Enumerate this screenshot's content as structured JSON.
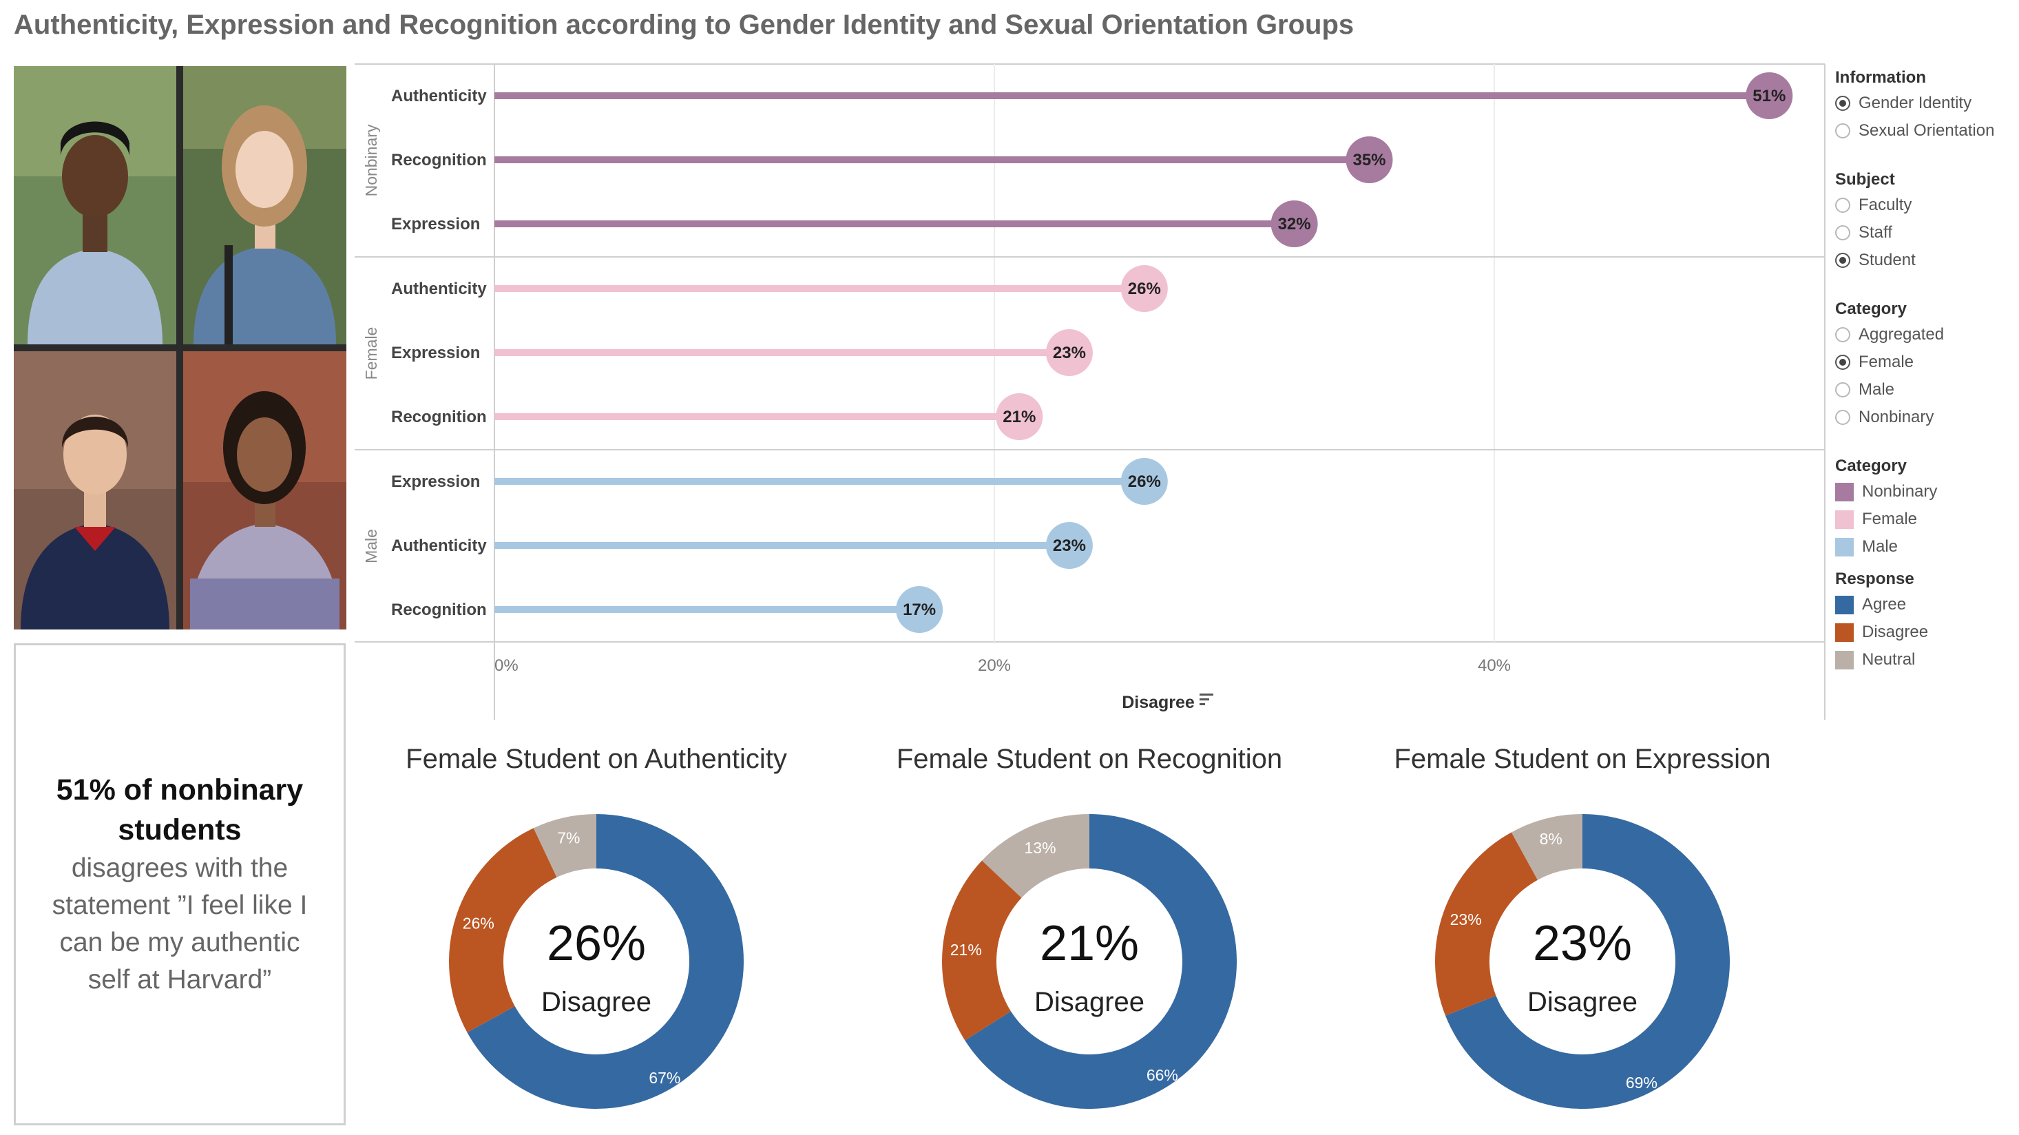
{
  "title": "Authenticity, Expression and Recognition according to Gender Identity and Sexual Orientation Groups",
  "callout": {
    "strong": "51% of nonbinary students",
    "rest": "disagrees with the statement ”I feel like I can be my authentic self at Harvard”"
  },
  "sidebar": {
    "information": {
      "header": "Information",
      "options": [
        {
          "label": "Gender Identity",
          "selected": true
        },
        {
          "label": "Sexual Orientation",
          "selected": false
        }
      ]
    },
    "subject": {
      "header": "Subject",
      "options": [
        {
          "label": "Faculty",
          "selected": false
        },
        {
          "label": "Staff",
          "selected": false
        },
        {
          "label": "Student",
          "selected": true
        }
      ]
    },
    "category_filter": {
      "header": "Category",
      "options": [
        {
          "label": "Aggregated",
          "selected": false
        },
        {
          "label": "Female",
          "selected": true
        },
        {
          "label": "Male",
          "selected": false
        },
        {
          "label": "Nonbinary",
          "selected": false
        }
      ]
    },
    "category_legend": {
      "header": "Category",
      "items": [
        {
          "label": "Nonbinary",
          "color": "#a77b9f"
        },
        {
          "label": "Female",
          "color": "#f0c1d0"
        },
        {
          "label": "Male",
          "color": "#a8c8e2"
        }
      ]
    },
    "response_legend": {
      "header": "Response",
      "items": [
        {
          "label": "Agree",
          "color": "#3569a1"
        },
        {
          "label": "Disagree",
          "color": "#bb5623"
        },
        {
          "label": "Neutral",
          "color": "#bab0a8"
        }
      ]
    }
  },
  "chart_data": [
    {
      "type": "bar",
      "xlabel": "Disagree",
      "xlim": [
        0,
        50
      ],
      "x_ticks": [
        "0%",
        "20%",
        "40%"
      ],
      "x_tick_values": [
        0,
        20,
        40
      ],
      "groups": [
        {
          "name": "Nonbinary",
          "color": "#a77b9f",
          "label_color": "#a77b9f",
          "items": [
            {
              "label": "Authenticity",
              "value": 51,
              "text": "51%"
            },
            {
              "label": "Recognition",
              "value": 35,
              "text": "35%"
            },
            {
              "label": "Expression",
              "value": 32,
              "text": "32%"
            }
          ]
        },
        {
          "name": "Female",
          "color": "#f0c1d0",
          "label_color": "#f0c1d0",
          "items": [
            {
              "label": "Authenticity",
              "value": 26,
              "text": "26%"
            },
            {
              "label": "Expression",
              "value": 23,
              "text": "23%"
            },
            {
              "label": "Recognition",
              "value": 21,
              "text": "21%"
            }
          ]
        },
        {
          "name": "Male",
          "color": "#a8c8e2",
          "label_color": "#a8c8e2",
          "items": [
            {
              "label": "Expression",
              "value": 26,
              "text": "26%"
            },
            {
              "label": "Authenticity",
              "value": 23,
              "text": "23%"
            },
            {
              "label": "Recognition",
              "value": 17,
              "text": "17%"
            }
          ]
        }
      ]
    },
    {
      "type": "pie",
      "title": "Female Student on Authenticity",
      "center_value": "26%",
      "center_label": "Disagree",
      "slices": [
        {
          "name": "Agree",
          "value": 67,
          "text": "67%",
          "color": "#3569a1"
        },
        {
          "name": "Disagree",
          "value": 26,
          "text": "26%",
          "color": "#bb5623"
        },
        {
          "name": "Neutral",
          "value": 7,
          "text": "7%",
          "color": "#bab0a8"
        }
      ]
    },
    {
      "type": "pie",
      "title": "Female Student on Recognition",
      "center_value": "21%",
      "center_label": "Disagree",
      "slices": [
        {
          "name": "Agree",
          "value": 66,
          "text": "66%",
          "color": "#3569a1"
        },
        {
          "name": "Disagree",
          "value": 21,
          "text": "21%",
          "color": "#bb5623"
        },
        {
          "name": "Neutral",
          "value": 13,
          "text": "13%",
          "color": "#bab0a8"
        }
      ]
    },
    {
      "type": "pie",
      "title": "Female Student on Expression",
      "center_value": "23%",
      "center_label": "Disagree",
      "slices": [
        {
          "name": "Agree",
          "value": 69,
          "text": "69%",
          "color": "#3569a1"
        },
        {
          "name": "Disagree",
          "value": 23,
          "text": "23%",
          "color": "#bb5623"
        },
        {
          "name": "Neutral",
          "value": 8,
          "text": "8%",
          "color": "#bab0a8"
        }
      ]
    }
  ]
}
